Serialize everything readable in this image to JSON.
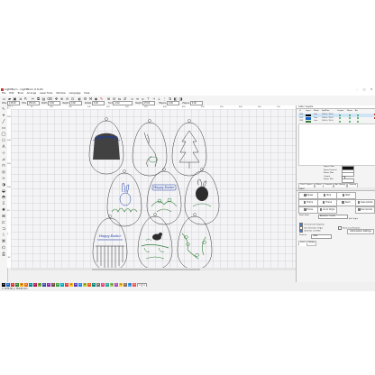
{
  "window": {
    "title": "LightBurn - LightBurn 0.9.20",
    "menu": [
      "File",
      "Edit",
      "Tools",
      "Arrange",
      "Laser Tools",
      "Window",
      "Language",
      "Help"
    ]
  },
  "toolbar": {
    "props": [
      {
        "label": "XPos",
        "value": "110.00"
      },
      {
        "label": "YPos",
        "value": "150.00"
      },
      {
        "label": "Width",
        "value": "0.00"
      },
      {
        "label": "Height",
        "value": "0.00"
      },
      {
        "label": "Rotate",
        "value": "0.00"
      },
      {
        "label": "Font",
        "value": "Arial"
      },
      {
        "label": "Height",
        "value": "25.00"
      },
      {
        "label": "HSpace",
        "value": "0.00"
      },
      {
        "label": "VSpace",
        "value": "0.00"
      }
    ]
  },
  "ruler": {
    "top": [
      "0",
      "50",
      "100",
      "150",
      "200",
      "250",
      "300",
      "350",
      "400",
      "450",
      "500",
      "550",
      "600",
      "650",
      "700"
    ],
    "left": [
      "250",
      "200",
      "150",
      "100",
      "50",
      "0",
      "-50"
    ]
  },
  "canvas": {
    "egg_texts": [
      "Happy Easter",
      "Happy Easter",
      "Happy Easter"
    ]
  },
  "palette": {
    "swatches": [
      {
        "label": "00",
        "color": "#000000"
      },
      {
        "label": "01",
        "color": "#1565c0"
      },
      {
        "label": "02",
        "color": "#d32f2f"
      },
      {
        "label": "03",
        "color": "#2e7d32"
      },
      {
        "label": "04",
        "color": "#f9a825"
      },
      {
        "label": "05",
        "color": "#ef6c00"
      },
      {
        "label": "06",
        "color": "#00838f"
      },
      {
        "label": "07",
        "color": "#ad1457"
      },
      {
        "label": "08",
        "color": "#7cb342"
      },
      {
        "label": "09",
        "color": "#3949ab"
      },
      {
        "label": "10",
        "color": "#8e24aa"
      },
      {
        "label": "11",
        "color": "#6d4c41"
      },
      {
        "label": "12",
        "color": "#43a047"
      },
      {
        "label": "13",
        "color": "#00acc1"
      },
      {
        "label": "14",
        "color": "#e53935"
      },
      {
        "label": "15",
        "color": "#fbc02d"
      },
      {
        "label": "16",
        "color": "#5e35b1"
      },
      {
        "label": "17",
        "color": "#1e88e5"
      },
      {
        "label": "18",
        "color": "#c0ca33"
      },
      {
        "label": "19",
        "color": "#f4511e"
      },
      {
        "label": "20",
        "color": "#00897b"
      },
      {
        "label": "21",
        "color": "#757575"
      },
      {
        "label": "22",
        "color": "#ec407a"
      },
      {
        "label": "23",
        "color": "#26a69a"
      },
      {
        "label": "24",
        "color": "#9ccc65"
      },
      {
        "label": "25",
        "color": "#ab47bc"
      },
      {
        "label": "26",
        "color": "#ffca28"
      },
      {
        "label": "27",
        "color": "#8d6e63"
      },
      {
        "label": "28",
        "color": "#42a5f5"
      },
      {
        "label": "29",
        "color": "#ef5350"
      },
      {
        "label": "T1",
        "color": "#ffffff"
      },
      {
        "label": "T2",
        "color": "#ffffff"
      }
    ]
  },
  "status": {
    "text": "x: 1273.06, y: 763.60 mm"
  },
  "cuts": {
    "title": "Cuts / Layers",
    "columns": [
      "#",
      "Layer",
      "Mode",
      "Spd/Pwr",
      "Output",
      "Show",
      "Air"
    ],
    "rows": [
      {
        "num": "C00",
        "color": "#000000",
        "mode": "Line",
        "spdpwr": "100.0 / 30.0"
      },
      {
        "num": "C01",
        "color": "#1565c0",
        "mode": "Line",
        "spdpwr": "100.0 / 30.0"
      },
      {
        "num": "C03",
        "color": "#2e7d32",
        "mode": "Line",
        "spdpwr": "100.0 / 30.0"
      }
    ],
    "fields": [
      {
        "label": "Layer Color",
        "kind": "color"
      },
      {
        "label": "Speed (mm/s)",
        "kind": "input"
      },
      {
        "label": "Power Max",
        "kind": "input"
      },
      {
        "label": "Output",
        "kind": "check"
      },
      {
        "label": "Power Min",
        "kind": "input"
      }
    ],
    "tabs": [
      "Cuts / Layers",
      "Move",
      "Console",
      "Art Library",
      "Camera"
    ]
  },
  "laser": {
    "title": "Laser",
    "buttons": [
      "Pause",
      "Stop",
      "Start",
      "Frame",
      "Frame",
      "Send",
      "Save GCode",
      "Run GCode",
      "Home",
      "Go to Origin",
      "Start From"
    ],
    "start_from_value": "Absolute Coords",
    "job_origin_label": "Job Origin",
    "options": [
      "Cut Selected Graphics",
      "Use Selection Origin",
      "Optimize Cut Path",
      "Show Last Position",
      "Optimization Settings"
    ],
    "device": "Devices",
    "device_value": "GRBL",
    "tabs": [
      "Laser",
      "Library"
    ]
  }
}
